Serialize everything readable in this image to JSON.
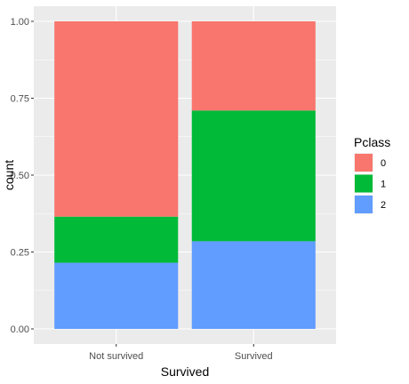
{
  "chart_data": {
    "type": "bar",
    "stacked": true,
    "categories": [
      "Not survived",
      "Survived"
    ],
    "series": [
      {
        "name": "2",
        "values": [
          0.215,
          0.285
        ],
        "color": "#619CFF"
      },
      {
        "name": "1",
        "values": [
          0.15,
          0.425
        ],
        "color": "#00BA38"
      },
      {
        "name": "0",
        "values": [
          0.635,
          0.29
        ],
        "color": "#F8766D"
      }
    ],
    "xlabel": "Survived",
    "ylabel": "count",
    "ylim": [
      0,
      1
    ],
    "yticks": [
      "0.00",
      "0.25",
      "0.50",
      "0.75",
      "1.00"
    ],
    "ytick_values": [
      0,
      0.25,
      0.5,
      0.75,
      1.0
    ],
    "legend": {
      "title": "Pclass",
      "entries": [
        {
          "label": "0",
          "color": "#F8766D"
        },
        {
          "label": "1",
          "color": "#00BA38"
        },
        {
          "label": "2",
          "color": "#619CFF"
        }
      ],
      "placement": "right"
    },
    "grid": true,
    "panel_background": "#EBEBEB"
  }
}
